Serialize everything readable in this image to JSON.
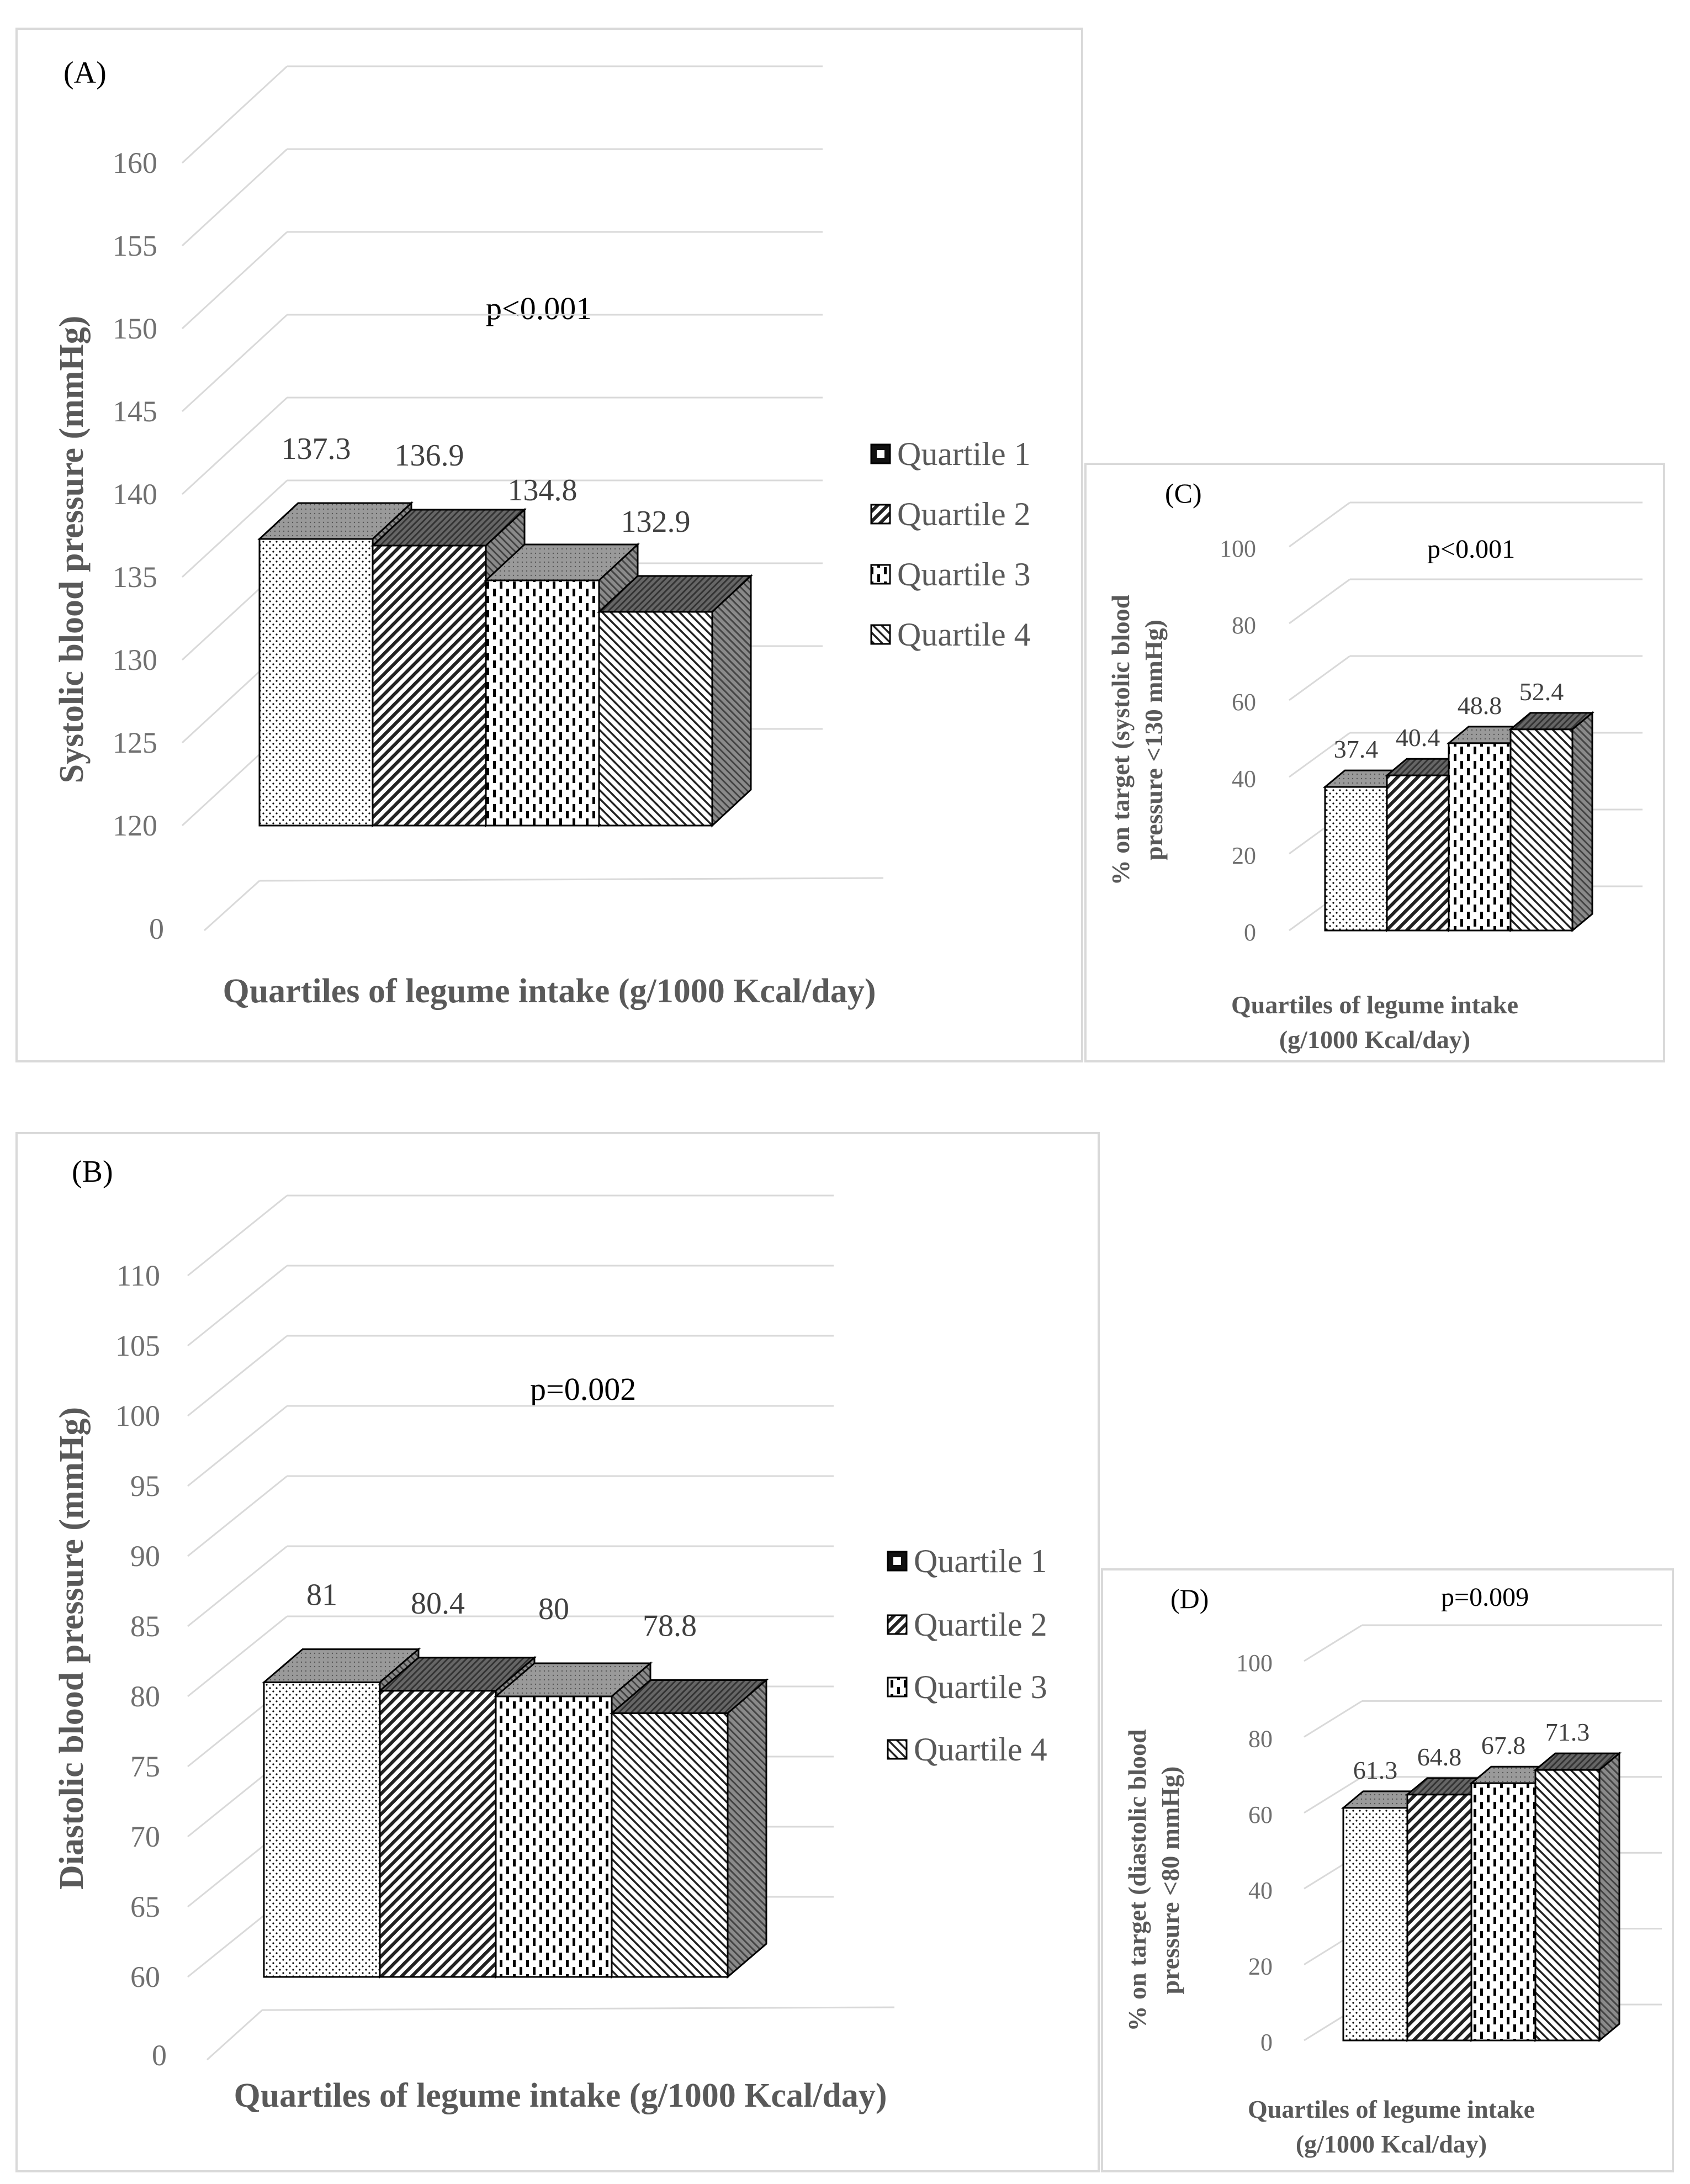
{
  "legend_labels": [
    "Quartile 1",
    "Quartile 2",
    "Quartile 3",
    "Quartile 4"
  ],
  "chart_data": [
    {
      "panel": "(A)",
      "type": "bar",
      "categories": [
        "Quartile 1",
        "Quartile 2",
        "Quartile 3",
        "Quartile 4"
      ],
      "values": [
        137.3,
        136.9,
        134.8,
        132.9
      ],
      "value_labels": [
        "137.3",
        "136.9",
        "134.8",
        "132.9"
      ],
      "annotation": "p<0.001",
      "ylabel": "Systolic blood pressure (mmHg)",
      "xlabel": "Quartiles of legume intake (g/1000 Kcal/day)",
      "yticks": [
        120,
        125,
        130,
        135,
        140,
        145,
        150,
        155,
        160
      ],
      "ytick_labels": [
        "0",
        "120",
        "125",
        "130",
        "135",
        "140",
        "145",
        "150",
        "155",
        "160"
      ],
      "axis_break": true,
      "ylim": [
        120,
        160
      ]
    },
    {
      "panel": "(B)",
      "type": "bar",
      "categories": [
        "Quartile 1",
        "Quartile 2",
        "Quartile 3",
        "Quartile 4"
      ],
      "values": [
        81,
        80.4,
        80,
        78.8
      ],
      "value_labels": [
        "81",
        "80.4",
        "80",
        "78.8"
      ],
      "annotation": "p=0.002",
      "ylabel": "Diastolic blood pressure (mmHg)",
      "xlabel": "Quartiles of legume intake (g/1000 Kcal/day)",
      "yticks": [
        60,
        65,
        70,
        75,
        80,
        85,
        90,
        95,
        100,
        105,
        110
      ],
      "ytick_labels": [
        "0",
        "60",
        "65",
        "70",
        "75",
        "80",
        "85",
        "90",
        "95",
        "100",
        "105",
        "110"
      ],
      "axis_break": true,
      "ylim": [
        60,
        110
      ]
    },
    {
      "panel": "(C)",
      "type": "bar",
      "categories": [
        "Quartile 1",
        "Quartile 2",
        "Quartile 3",
        "Quartile 4"
      ],
      "values": [
        37.4,
        40.4,
        48.8,
        52.4
      ],
      "value_labels": [
        "37.4",
        "40.4",
        "48.8",
        "52.4"
      ],
      "annotation": "p<0.001",
      "ylabel": [
        "% on target (systolic blood",
        "pressure <130 mmHg)"
      ],
      "xlabel": [
        "Quartiles of legume intake",
        "(g/1000 Kcal/day)"
      ],
      "yticks": [
        0,
        20,
        40,
        60,
        80,
        100
      ],
      "ytick_labels": [
        "0",
        "20",
        "40",
        "60",
        "80",
        "100"
      ],
      "ylim": [
        0,
        100
      ]
    },
    {
      "panel": "(D)",
      "type": "bar",
      "categories": [
        "Quartile 1",
        "Quartile 2",
        "Quartile 3",
        "Quartile 4"
      ],
      "values": [
        61.3,
        64.8,
        67.8,
        71.3
      ],
      "value_labels": [
        "61.3",
        "64.8",
        "67.8",
        "71.3"
      ],
      "annotation": "p=0.009",
      "ylabel": [
        "% on target (diastolic blood",
        "pressure <80 mmHg)"
      ],
      "xlabel": [
        "Quartiles of legume intake",
        "(g/1000 Kcal/day)"
      ],
      "yticks": [
        0,
        20,
        40,
        60,
        80,
        100
      ],
      "ytick_labels": [
        "0",
        "20",
        "40",
        "60",
        "80",
        "100"
      ],
      "ylim": [
        0,
        100
      ]
    }
  ],
  "colors": {
    "frame": "#d9d9d9",
    "grid": "#d9d9d9",
    "bar_stroke": "#000000",
    "top_q1": "#a6a6a6",
    "top_q2": "#595959",
    "top_q3": "#a6a6a6",
    "top_q4": "#8c8c8c",
    "side": "#7f7f7f"
  }
}
